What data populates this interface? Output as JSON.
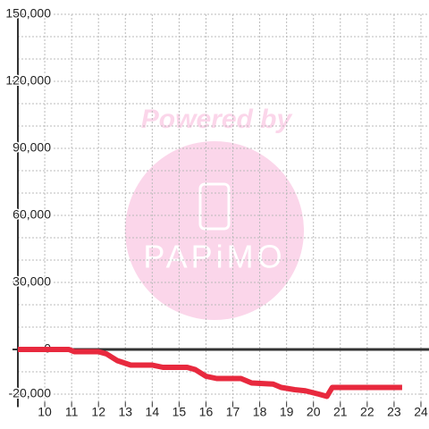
{
  "chart_data": {
    "type": "line",
    "watermark": {
      "top": "Powered by",
      "logo": "PAPiMO"
    },
    "series": [
      {
        "color": "#e8293e",
        "x": [
          9,
          10.9,
          11.1,
          12,
          12.3,
          12.7,
          13.2,
          14,
          14.4,
          15.3,
          15.6,
          16,
          16.4,
          17.3,
          17.7,
          18.5,
          18.8,
          19.3,
          19.7,
          20.2,
          20.5,
          20.7,
          23.3
        ],
        "values": [
          0,
          0,
          -1000,
          -1000,
          -2000,
          -5000,
          -7000,
          -7000,
          -8000,
          -8000,
          -9000,
          -12000,
          -13000,
          -13000,
          -15000,
          -15500,
          -17000,
          -18000,
          -18500,
          -20000,
          -21000,
          -17000,
          -17000
        ]
      }
    ],
    "xlim": [
      9,
      24.3
    ],
    "xticks": [
      10,
      11,
      12,
      13,
      14,
      15,
      16,
      17,
      18,
      19,
      20,
      21,
      22,
      23,
      24
    ],
    "ylim": [
      -25000,
      150000
    ],
    "yticks": [
      {
        "value": 150000,
        "label": "150,000"
      },
      {
        "value": 120000,
        "label": "120,000"
      },
      {
        "value": 90000,
        "label": "90,000"
      },
      {
        "value": 60000,
        "label": "60,000"
      },
      {
        "value": 30000,
        "label": "30,000"
      },
      0,
      {
        "value": -20000,
        "label": "-20,000"
      }
    ],
    "ygrid": [
      -20000,
      -10000,
      10000,
      20000,
      30000,
      40000,
      50000,
      60000,
      70000,
      80000,
      90000,
      100000,
      110000,
      120000,
      130000,
      140000,
      150000
    ],
    "grid": true
  }
}
